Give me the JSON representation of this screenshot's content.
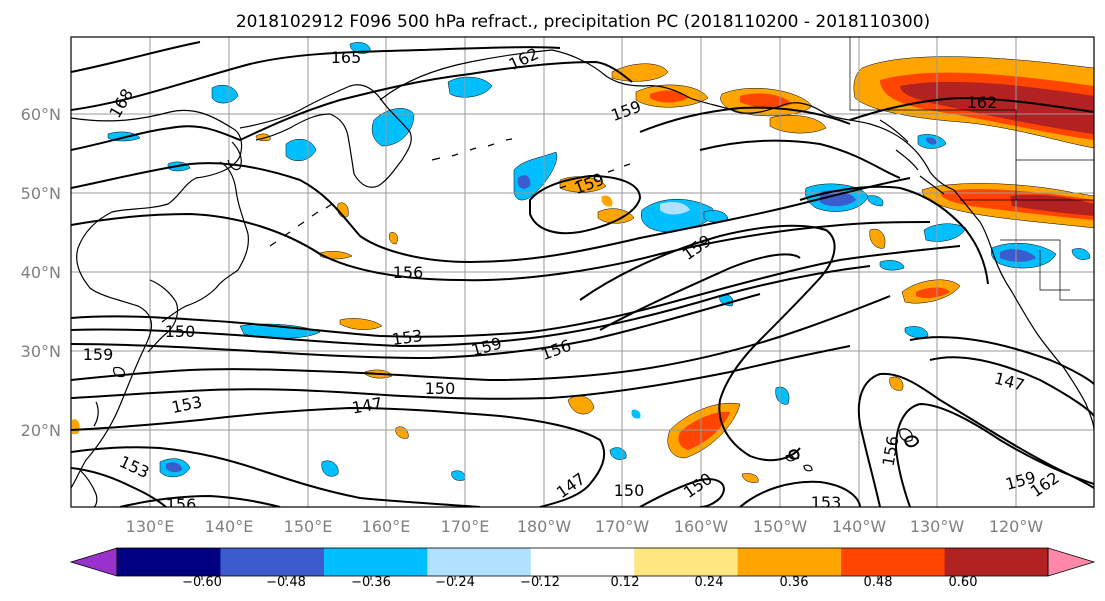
{
  "title": "2018102912 F096 500 hPa refract., precipitation PC (2018110200 - 2018110300)",
  "lon_ticks": [
    "130°E",
    "140°E",
    "150°E",
    "160°E",
    "170°E",
    "180°W",
    "170°W",
    "160°W",
    "150°W",
    "140°W",
    "130°W",
    "120°W"
  ],
  "lat_ticks": [
    "60°N",
    "50°N",
    "40°N",
    "30°N",
    "20°N"
  ],
  "colorbar": {
    "colors": [
      "#9932cc",
      "#000080",
      "#3a5ccc",
      "#00bfff",
      "#b0e2ff",
      "#ffffff",
      "#ffe680",
      "#ffa500",
      "#ff4500",
      "#b22222",
      "#ff88aa"
    ],
    "ticks": [
      "−0.60",
      "−0.48",
      "−0.36",
      "−0.24",
      "−0.12",
      "0.12",
      "0.24",
      "0.36",
      "0.48",
      "0.60"
    ]
  },
  "contour_labels": [
    {
      "text": "165"
    },
    {
      "text": "162"
    },
    {
      "text": "168"
    },
    {
      "text": "159"
    },
    {
      "text": "159"
    },
    {
      "text": "162"
    },
    {
      "text": "159"
    },
    {
      "text": "156"
    },
    {
      "text": "150"
    },
    {
      "text": "153"
    },
    {
      "text": "159"
    },
    {
      "text": "159"
    },
    {
      "text": "156"
    },
    {
      "text": "150"
    },
    {
      "text": "153"
    },
    {
      "text": "147"
    },
    {
      "text": "153"
    },
    {
      "text": "156"
    },
    {
      "text": "147"
    },
    {
      "text": "150"
    },
    {
      "text": "150"
    },
    {
      "text": "153"
    },
    {
      "text": "156"
    },
    {
      "text": "147"
    },
    {
      "text": "159"
    },
    {
      "text": "162"
    }
  ]
}
